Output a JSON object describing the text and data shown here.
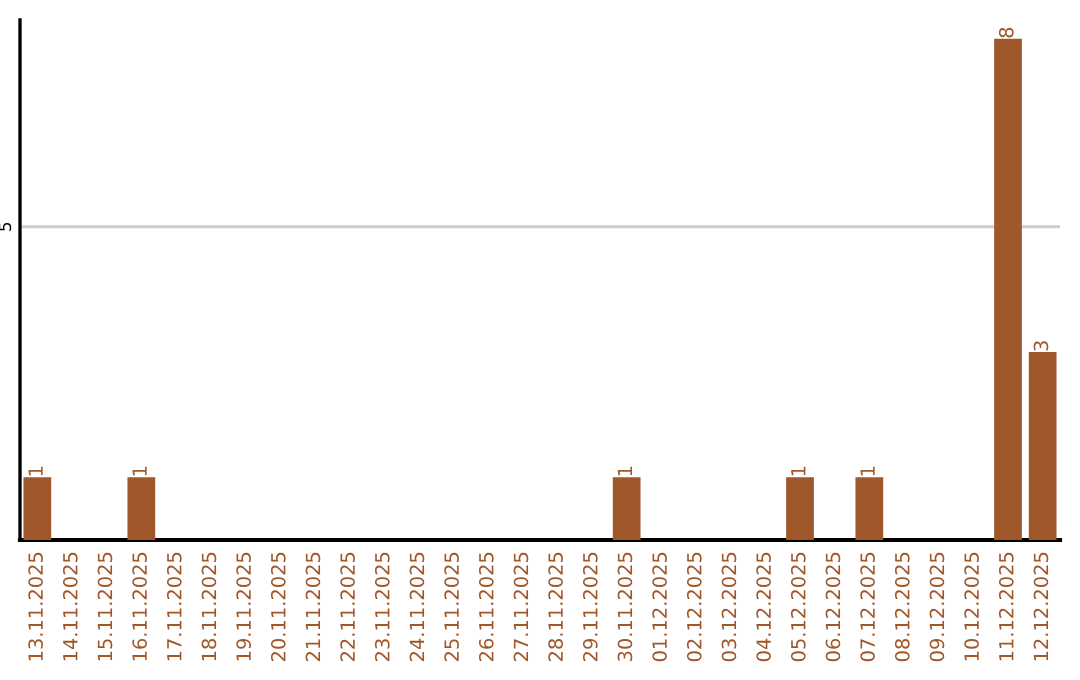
{
  "chart_data": {
    "type": "bar",
    "categories": [
      "13.11.2025",
      "14.11.2025",
      "15.11.2025",
      "16.11.2025",
      "17.11.2025",
      "18.11.2025",
      "19.11.2025",
      "20.11.2025",
      "21.11.2025",
      "22.11.2025",
      "23.11.2025",
      "24.11.2025",
      "25.11.2025",
      "26.11.2025",
      "27.11.2025",
      "28.11.2025",
      "29.11.2025",
      "30.11.2025",
      "01.12.2025",
      "02.12.2025",
      "03.12.2025",
      "04.12.2025",
      "05.12.2025",
      "06.12.2025",
      "07.12.2025",
      "08.12.2025",
      "09.12.2025",
      "10.12.2025",
      "11.12.2025",
      "12.12.2025"
    ],
    "values": [
      1,
      0,
      0,
      1,
      0,
      0,
      0,
      0,
      0,
      0,
      0,
      0,
      0,
      0,
      0,
      0,
      0,
      1,
      0,
      0,
      0,
      0,
      1,
      0,
      1,
      0,
      0,
      0,
      8,
      3
    ],
    "value_labels": [
      "1",
      null,
      null,
      "1",
      null,
      null,
      null,
      null,
      null,
      null,
      null,
      null,
      null,
      null,
      null,
      null,
      null,
      "1",
      null,
      null,
      null,
      null,
      "1",
      null,
      "1",
      null,
      null,
      null,
      "8",
      "3"
    ],
    "color": "#a0572a",
    "ylim": [
      0,
      8.3
    ],
    "yticks": [
      5
    ],
    "grid": "y"
  }
}
